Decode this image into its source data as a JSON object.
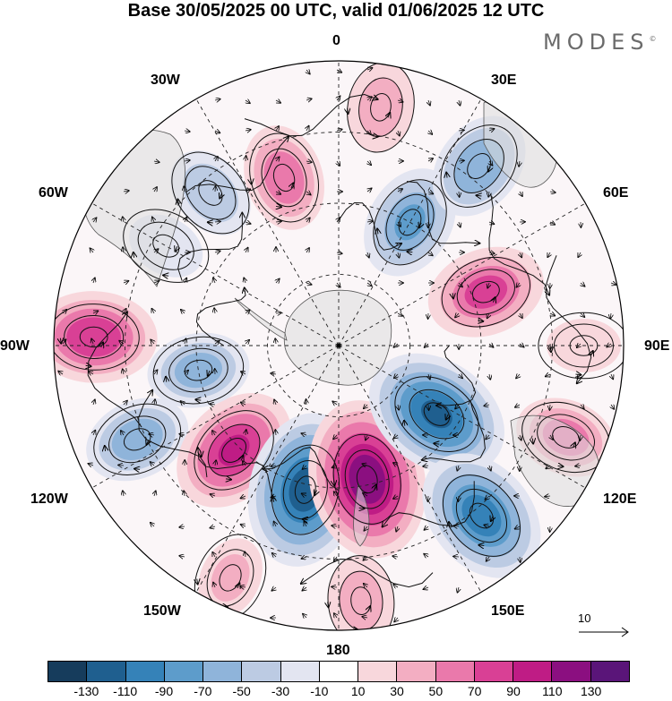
{
  "title": "Base 30/05/2025 00 UTC, valid 01/06/2025 12 UTC",
  "logo": {
    "text": "MODES",
    "mark": "©"
  },
  "longitude_labels": {
    "lon_0": "0",
    "lon_30e": "30E",
    "lon_60e": "60E",
    "lon_90e": "90E",
    "lon_120e": "120E",
    "lon_150e": "150E",
    "lon_180": "180",
    "lon_150w": "150W",
    "lon_120w": "120W",
    "lon_90w": "90W",
    "lon_60w": "60W",
    "lon_30w": "30W"
  },
  "reference_vector": {
    "label": "10"
  },
  "colorbar": {
    "colors": [
      "#163c5c",
      "#1f5f8f",
      "#3582b8",
      "#5d9ccb",
      "#8fb4da",
      "#bccbe3",
      "#e3e5f1",
      "#ffffff",
      "#f8d7dc",
      "#f3aec2",
      "#ea79ab",
      "#d94095",
      "#bf1c85",
      "#8b0f80",
      "#5a1579"
    ],
    "ticks": [
      "-130",
      "-110",
      "-90",
      "-70",
      "-50",
      "-30",
      "-10",
      "10",
      "30",
      "50",
      "70",
      "90",
      "110",
      "130"
    ]
  },
  "map": {
    "projection": "south polar stereographic",
    "field": "anomaly with streamlines",
    "anomaly_centers": [
      {
        "lon": -88,
        "lat_ring": 0.86,
        "value": 85
      },
      {
        "lon": -115,
        "lat_ring": 0.78,
        "value": -60
      },
      {
        "lon": -135,
        "lat_ring": 0.52,
        "value": 90
      },
      {
        "lon": -167,
        "lat_ring": 0.52,
        "value": -120
      },
      {
        "lon": 168,
        "lat_ring": 0.48,
        "value": 125
      },
      {
        "lon": 125,
        "lat_ring": 0.42,
        "value": -110
      },
      {
        "lon": 140,
        "lat_ring": 0.78,
        "value": -100
      },
      {
        "lon": 112,
        "lat_ring": 0.86,
        "value": 55
      },
      {
        "lon": 70,
        "lat_ring": 0.55,
        "value": 75
      },
      {
        "lon": 30,
        "lat_ring": 0.5,
        "value": -70
      },
      {
        "lon": 38,
        "lat_ring": 0.8,
        "value": -65
      },
      {
        "lon": 10,
        "lat_ring": 0.85,
        "value": 40
      },
      {
        "lon": -18,
        "lat_ring": 0.62,
        "value": 60
      },
      {
        "lon": -40,
        "lat_ring": 0.7,
        "value": -45
      },
      {
        "lon": -60,
        "lat_ring": 0.7,
        "value": -25
      },
      {
        "lon": -100,
        "lat_ring": 0.5,
        "value": -55
      },
      {
        "lon": 90,
        "lat_ring": 0.86,
        "value": 20
      },
      {
        "lon": -155,
        "lat_ring": 0.9,
        "value": 30
      },
      {
        "lon": 175,
        "lat_ring": 0.9,
        "value": 40
      }
    ]
  }
}
